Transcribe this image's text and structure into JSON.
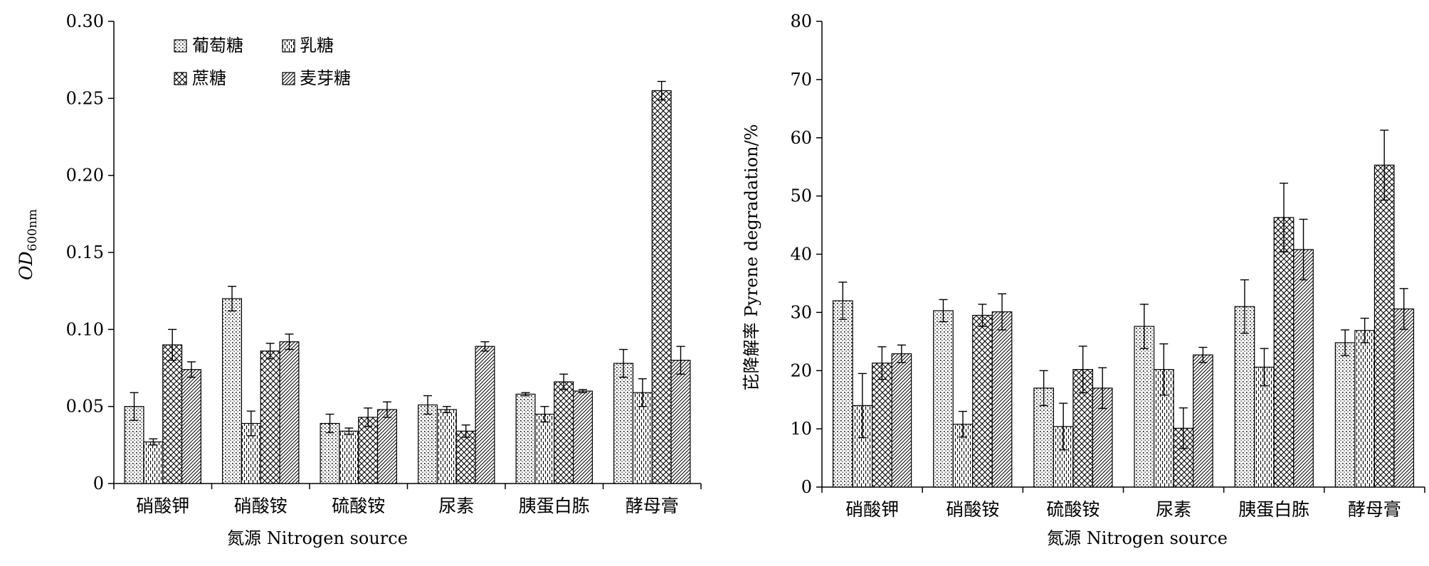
{
  "chart_data": [
    {
      "type": "bar",
      "categories": [
        "硝酸钾",
        "硝酸铵",
        "硫酸铵",
        "尿素",
        "胰蛋白胨",
        "酵母膏"
      ],
      "xlabel": "氮源 Nitrogen source",
      "ylabel": "OD",
      "ylabel_subscript": "600nm",
      "ylim": [
        0,
        0.3
      ],
      "yticks": [
        "0",
        "0.05",
        "0.10",
        "0.15",
        "0.20",
        "0.25",
        "0.30"
      ],
      "legend_position": "top-left",
      "series": [
        {
          "name": "葡萄糖",
          "values": [
            0.05,
            0.12,
            0.039,
            0.051,
            0.058,
            0.078
          ],
          "errors": [
            0.009,
            0.008,
            0.006,
            0.006,
            0.001,
            0.009
          ]
        },
        {
          "name": "乳糖",
          "values": [
            0.027,
            0.039,
            0.034,
            0.048,
            0.045,
            0.059
          ],
          "errors": [
            0.002,
            0.008,
            0.002,
            0.002,
            0.005,
            0.009
          ]
        },
        {
          "name": "蔗糖",
          "values": [
            0.09,
            0.086,
            0.043,
            0.034,
            0.066,
            0.255
          ],
          "errors": [
            0.01,
            0.005,
            0.006,
            0.004,
            0.005,
            0.006
          ]
        },
        {
          "name": "麦芽糖",
          "values": [
            0.074,
            0.092,
            0.048,
            0.089,
            0.06,
            0.08
          ],
          "errors": [
            0.005,
            0.005,
            0.005,
            0.003,
            0.001,
            0.009
          ]
        }
      ]
    },
    {
      "type": "bar",
      "categories": [
        "硝酸钾",
        "硝酸铵",
        "硫酸铵",
        "尿素",
        "胰蛋白胨",
        "酵母膏"
      ],
      "xlabel": "氮源 Nitrogen source",
      "ylabel": "芘降解率 Pyrene degradation/%",
      "ylim": [
        0,
        80
      ],
      "yticks": [
        "0",
        "10",
        "20",
        "30",
        "40",
        "50",
        "60",
        "70",
        "80"
      ],
      "series": [
        {
          "name": "葡萄糖",
          "values": [
            32.0,
            30.3,
            17.0,
            27.6,
            31.0,
            24.8
          ],
          "errors": [
            3.2,
            1.9,
            3.0,
            3.8,
            4.6,
            2.2
          ]
        },
        {
          "name": "乳糖",
          "values": [
            14.0,
            10.8,
            10.4,
            20.2,
            20.6,
            26.9
          ],
          "errors": [
            5.5,
            2.2,
            4.0,
            4.4,
            3.2,
            2.1
          ]
        },
        {
          "name": "蔗糖",
          "values": [
            21.3,
            29.5,
            20.2,
            10.1,
            46.3,
            55.3
          ],
          "errors": [
            2.8,
            1.9,
            4.0,
            3.5,
            5.9,
            6.0
          ]
        },
        {
          "name": "麦芽糖",
          "values": [
            22.9,
            30.1,
            17.0,
            22.7,
            40.8,
            30.6
          ],
          "errors": [
            1.5,
            3.1,
            3.5,
            1.3,
            5.2,
            3.5
          ]
        }
      ]
    }
  ]
}
